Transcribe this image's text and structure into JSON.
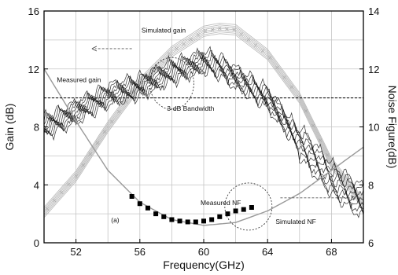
{
  "chart_data": {
    "type": "line",
    "x_axis": {
      "label": "Frequency(GHz)",
      "range": [
        50,
        70
      ],
      "ticks": [
        52,
        56,
        60,
        64,
        68
      ],
      "grid_step": 2
    },
    "y_left": {
      "label": "Gain (dB)",
      "range": [
        0,
        16
      ],
      "ticks": [
        0,
        4,
        8,
        12,
        16
      ],
      "grid_step": 2
    },
    "y_right": {
      "label": "Noise Figure(dB)",
      "range": [
        6,
        14
      ],
      "ticks": [
        6,
        8,
        10,
        12,
        14
      ]
    },
    "grid": true,
    "series": [
      {
        "name": "Simulated gain",
        "axis": "left",
        "style": "hatched-band",
        "color": "#b8b8b8",
        "x": [
          50,
          52,
          54,
          56,
          58,
          60,
          61,
          62,
          64,
          66,
          68,
          70
        ],
        "y": [
          2.1,
          4.6,
          8.0,
          11.0,
          13.2,
          14.6,
          14.8,
          14.7,
          13.0,
          10.0,
          5.5,
          2.7
        ]
      },
      {
        "name": "Measured gain",
        "axis": "left",
        "style": "noisy-multitrace",
        "color": "#111111",
        "x": [
          50,
          52,
          54,
          56,
          58,
          60,
          61,
          62,
          64,
          66,
          68,
          70
        ],
        "y": [
          8.0,
          9.0,
          10.2,
          10.8,
          11.8,
          12.5,
          12.2,
          11.4,
          10.0,
          7.0,
          4.4,
          2.8
        ]
      },
      {
        "name": "Simulated NF",
        "axis": "right",
        "style": "line",
        "color": "#999999",
        "x": [
          50,
          52,
          54,
          56,
          58,
          60,
          62,
          64,
          66,
          68,
          70
        ],
        "y": [
          12.0,
          10.2,
          8.5,
          7.4,
          6.8,
          6.6,
          6.7,
          7.1,
          7.7,
          8.5,
          9.3
        ]
      },
      {
        "name": "Measured NF",
        "axis": "right",
        "style": "markers-square",
        "color": "#000000",
        "x": [
          55.5,
          56.0,
          56.5,
          57.0,
          57.5,
          58.0,
          58.5,
          59.0,
          59.5,
          60.0,
          60.5,
          61.0,
          61.5,
          62.0,
          62.5,
          63.0
        ],
        "y": [
          7.6,
          7.35,
          7.2,
          7.0,
          6.9,
          6.8,
          6.75,
          6.72,
          6.72,
          6.75,
          6.8,
          6.9,
          7.0,
          7.1,
          7.15,
          7.22
        ]
      }
    ],
    "reference_line": {
      "label": "3-dB Bandwidth",
      "axis": "left",
      "y": 10.0,
      "style": "dashed"
    },
    "annotations": {
      "sim_gain": "Simulated gain",
      "meas_gain": "Measured gain",
      "sim_nf": "Simulated NF",
      "meas_nf": "Measured NF",
      "bandwidth": "3-dB Bandwidth",
      "panel": "(a)"
    }
  }
}
